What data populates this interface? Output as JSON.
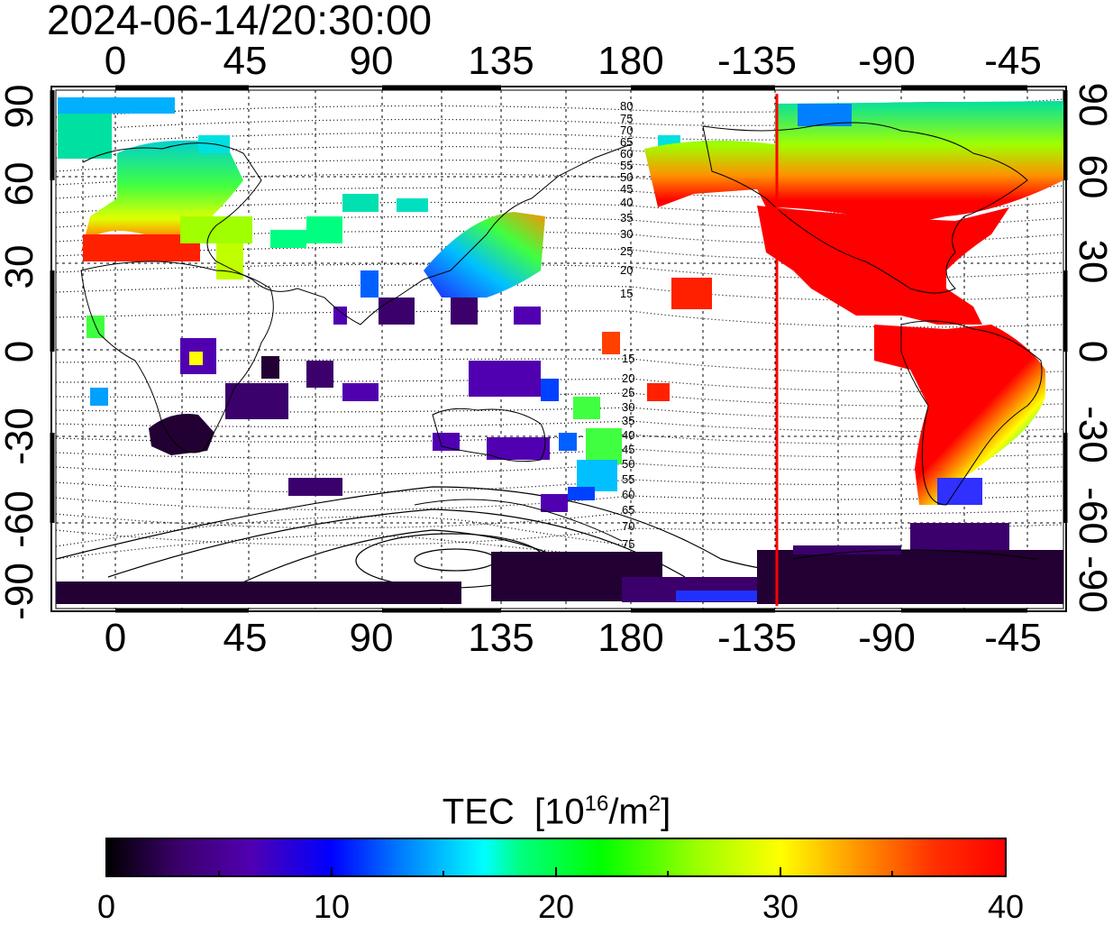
{
  "title": "2024-06-14/20:30:00",
  "axes": {
    "lon_ticks": [
      "0",
      "45",
      "90",
      "135",
      "180",
      "-135",
      "-90",
      "-45"
    ],
    "lat_ticks_left": [
      "90",
      "60",
      "30",
      "0",
      "-30",
      "-60",
      "-90"
    ],
    "lat_ticks_right": [
      "90",
      "60",
      "30",
      "0",
      "-30",
      "-60",
      "-90"
    ]
  },
  "contour_labels": {
    "north": [
      "80",
      "75",
      "70",
      "65",
      "60",
      "55",
      "50",
      "45",
      "40",
      "35",
      "30",
      "25",
      "20",
      "15"
    ],
    "south": [
      "15",
      "20",
      "25",
      "30",
      "35",
      "40",
      "45",
      "50",
      "55",
      "60",
      "65",
      "70",
      "75"
    ]
  },
  "colorbar": {
    "title_main": "TEC",
    "title_unit_pre": "[10",
    "title_unit_exp": "16",
    "title_unit_mid": "/m",
    "title_unit_exp2": "2",
    "title_unit_post": "]",
    "labels": [
      "0",
      "10",
      "20",
      "30",
      "40"
    ],
    "colors": [
      "#000000",
      "#3b006b",
      "#5000b0",
      "#0000ff",
      "#0080ff",
      "#00ffff",
      "#00ff80",
      "#00ff00",
      "#a0ff00",
      "#ffff00",
      "#ff9000",
      "#ff3000",
      "#ff0000"
    ]
  },
  "terminator_line": {
    "color": "#ff0000"
  }
}
